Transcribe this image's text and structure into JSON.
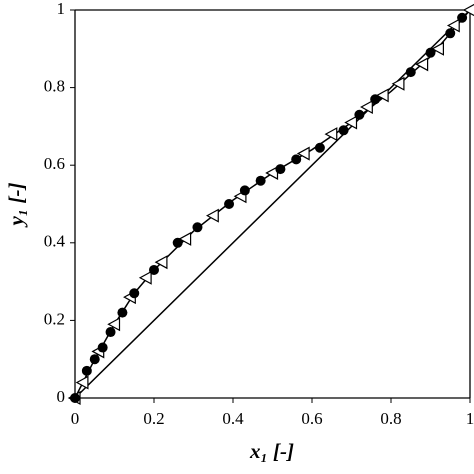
{
  "chart_data": {
    "type": "scatter",
    "x_label": "x₁ [-]",
    "y_label": "y₁ [-]",
    "xlim": [
      0,
      1
    ],
    "ylim": [
      0,
      1
    ],
    "xticks": [
      0,
      0.2,
      0.4,
      0.6,
      0.8,
      1
    ],
    "yticks": [
      0,
      0.2,
      0.4,
      0.6,
      0.8,
      1
    ],
    "frame": true,
    "series": [
      {
        "style": "line",
        "color": "#000000",
        "x": [
          0,
          1
        ],
        "values": [
          0,
          1
        ]
      },
      {
        "style": "line",
        "color": "#000000",
        "x": [
          0,
          0.05,
          0.1,
          0.15,
          0.2,
          0.3,
          0.4,
          0.5,
          0.6,
          0.7,
          0.8,
          0.9,
          1
        ],
        "values": [
          0,
          0.1,
          0.19,
          0.27,
          0.33,
          0.43,
          0.51,
          0.58,
          0.64,
          0.71,
          0.79,
          0.88,
          1
        ]
      },
      {
        "style": "triangle-left-open",
        "color": "#000000",
        "x": [
          0,
          0.02,
          0.06,
          0.1,
          0.14,
          0.18,
          0.22,
          0.28,
          0.35,
          0.42,
          0.5,
          0.58,
          0.65,
          0.7,
          0.74,
          0.78,
          0.82,
          0.88,
          0.92,
          0.96,
          1
        ],
        "values": [
          0,
          0.04,
          0.12,
          0.19,
          0.26,
          0.31,
          0.35,
          0.41,
          0.47,
          0.52,
          0.58,
          0.63,
          0.68,
          0.71,
          0.75,
          0.78,
          0.81,
          0.86,
          0.9,
          0.96,
          1
        ]
      },
      {
        "style": "circle-filled",
        "color": "#000000",
        "x": [
          0,
          0.03,
          0.05,
          0.07,
          0.09,
          0.12,
          0.15,
          0.2,
          0.26,
          0.31,
          0.39,
          0.43,
          0.47,
          0.52,
          0.56,
          0.62,
          0.68,
          0.72,
          0.76,
          0.85,
          0.9,
          0.95,
          0.98
        ],
        "values": [
          0,
          0.07,
          0.1,
          0.13,
          0.17,
          0.22,
          0.27,
          0.33,
          0.4,
          0.44,
          0.5,
          0.535,
          0.56,
          0.59,
          0.615,
          0.645,
          0.69,
          0.73,
          0.77,
          0.84,
          0.89,
          0.94,
          0.98
        ]
      }
    ]
  }
}
